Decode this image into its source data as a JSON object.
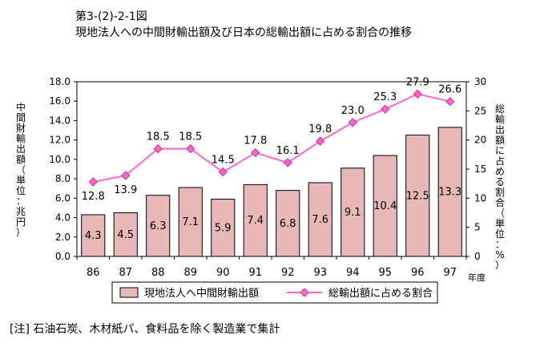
{
  "figure": {
    "number": "第3-(2)-2-1図",
    "title": "現地法人への中間財輸出額及び日本の総輸出額に占める割合の推移",
    "note": "[注]  石油石炭、木材紙パ、食料品を除く製造業で集計"
  },
  "chart_data": {
    "type": "bar+line",
    "categories": [
      "86",
      "87",
      "88",
      "89",
      "90",
      "91",
      "92",
      "93",
      "94",
      "95",
      "96",
      "97"
    ],
    "x_unit_label": "年度",
    "left_axis": {
      "label": "中間財輸出額（単位：兆円）",
      "ylim": [
        0,
        18
      ],
      "ticks": [
        "0.0",
        "2.0",
        "4.0",
        "6.0",
        "8.0",
        "10.0",
        "12.0",
        "14.0",
        "16.0",
        "18.0"
      ]
    },
    "right_axis": {
      "label": "総輸出額に占める割合（単位：%）",
      "ylim": [
        0,
        30
      ],
      "ticks": [
        "0",
        "5",
        "10",
        "15",
        "20",
        "25",
        "30"
      ]
    },
    "series": [
      {
        "name": "現地法人へ中間財輸出額",
        "type": "bar",
        "axis": "left",
        "color": "#e8b8b8",
        "values": [
          4.3,
          4.5,
          6.3,
          7.1,
          5.9,
          7.4,
          6.8,
          7.6,
          9.1,
          10.4,
          12.5,
          13.3
        ],
        "labels": [
          "4.3",
          "4.5",
          "6.3",
          "7.1",
          "5.9",
          "7.4",
          "6.8",
          "7.6",
          "9.1",
          "10.4",
          "12.5",
          "13.3"
        ]
      },
      {
        "name": "総輸出額に占める割合",
        "type": "line",
        "axis": "right",
        "color": "#ff66cc",
        "values": [
          12.8,
          13.9,
          18.5,
          18.5,
          14.5,
          17.8,
          16.1,
          19.8,
          23.0,
          25.3,
          27.9,
          26.6
        ],
        "labels": [
          "12.8",
          "13.9",
          "18.5",
          "18.5",
          "14.5",
          "17.8",
          "16.1",
          "19.8",
          "23.0",
          "25.3",
          "27.9",
          "26.6"
        ]
      }
    ],
    "legend_position": "bottom"
  }
}
